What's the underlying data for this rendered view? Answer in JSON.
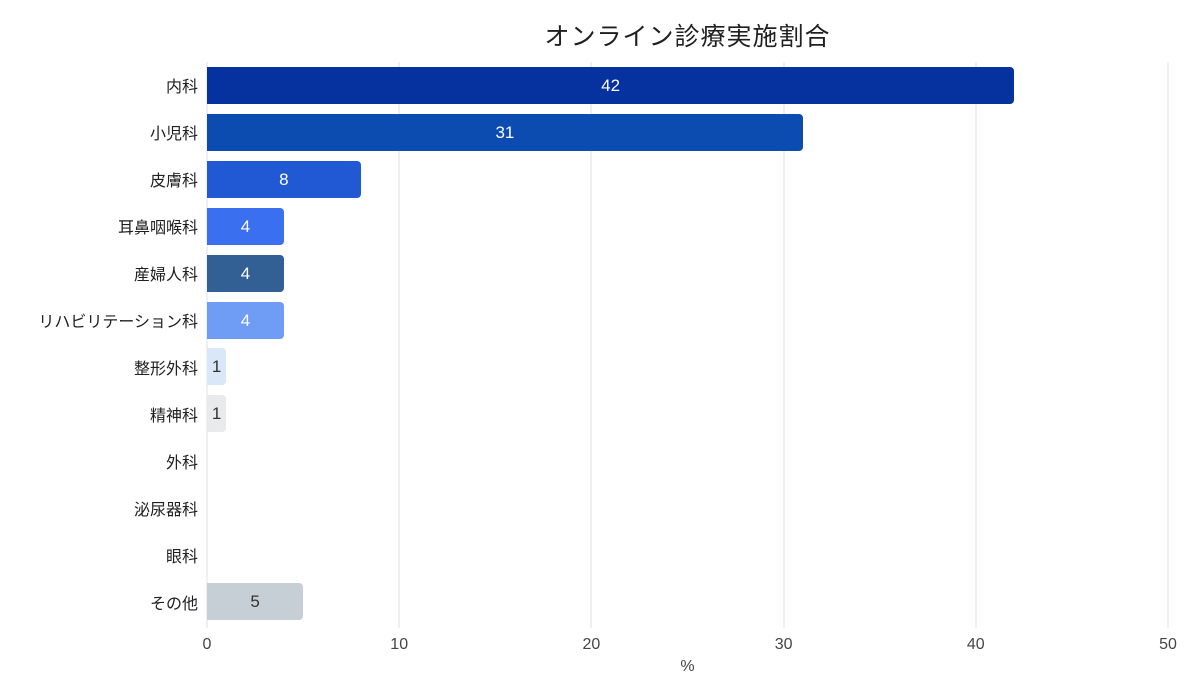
{
  "chart_data": {
    "type": "bar",
    "orientation": "horizontal",
    "title": "オンライン診療実施割合",
    "xlabel": "%",
    "ylabel": "",
    "xlim": [
      0,
      50
    ],
    "xticks": [
      0,
      10,
      20,
      30,
      40,
      50
    ],
    "grid": true,
    "legend": "none",
    "categories": [
      "内科",
      "小児科",
      "皮膚科",
      "耳鼻咽喉科",
      "産婦人科",
      "リハビリテーション科",
      "整形外科",
      "精神科",
      "外科",
      "泌尿器科",
      "眼科",
      "その他"
    ],
    "values": [
      42,
      31,
      8,
      4,
      4,
      4,
      1,
      1,
      0,
      0,
      0,
      5
    ],
    "bar_colors": [
      "#05329e",
      "#0c4cb0",
      "#2159d4",
      "#3a6ff0",
      "#325f94",
      "#6f9cf5",
      "#d9e7f8",
      "#e8eaeb",
      "#ffffff",
      "#ffffff",
      "#ffffff",
      "#c6ced6"
    ],
    "value_label_colors": [
      "#ffffff",
      "#ffffff",
      "#ffffff",
      "#ffffff",
      "#ffffff",
      "#ffffff",
      "#333333",
      "#333333",
      "",
      "",
      "",
      "#333333"
    ],
    "show_value_labels": [
      true,
      true,
      true,
      true,
      true,
      true,
      true,
      true,
      false,
      false,
      false,
      true
    ]
  },
  "colors": {
    "background": "#ffffff",
    "gridline": "#e2e2e2",
    "title_text": "#1f1f1f",
    "category_text": "#202020",
    "axis_text": "#444444"
  }
}
